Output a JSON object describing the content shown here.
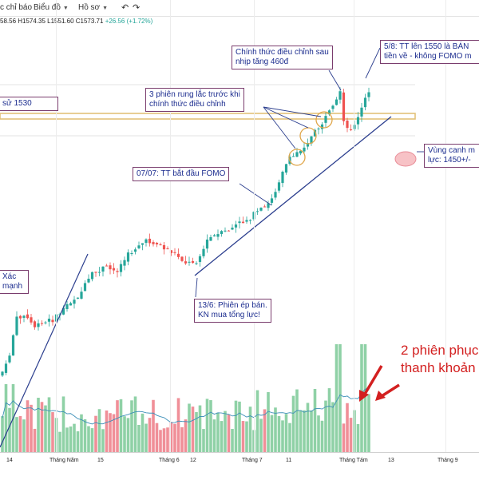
{
  "toolbar": {
    "items": [
      {
        "label": "c chỉ báo",
        "icon": "indicators-icon"
      },
      {
        "label": "Biểu đồ",
        "icon": "chevron-down-icon"
      },
      {
        "label": "Hồ sơ",
        "icon": "chevron-down-icon"
      }
    ]
  },
  "ohlc": {
    "text": "58.56 H1574.35 L1551.60 C1573.71",
    "change": "+26.56 (+1.72%)"
  },
  "annotations": {
    "resistance": "sử 1530",
    "shake": [
      "3 phiên rung lắc trước khi",
      "chính thức điều chỉnh"
    ],
    "correction": [
      "Chính thức điều chỉnh sau",
      "nhịp tăng 460đ"
    ],
    "aug5": [
      "5/8: TT lên 1550 là BÁN",
      "tiền về - không FOMO m"
    ],
    "fomo": "07/07: TT bắt đầu FOMO",
    "jun13": [
      "13/6: Phiên ép bán.",
      "KN mua tổng lực!"
    ],
    "watch_zone": [
      "Vùng canh m",
      "lực: 1450+/-"
    ],
    "left_note": [
      "Xác",
      "mạnh"
    ],
    "recovery": [
      "2 phiên phục",
      "thanh khoản"
    ]
  },
  "xaxis": [
    "14",
    "Tháng Năm",
    "15",
    "Tháng 6",
    "12",
    "Tháng 7",
    "11",
    "Tháng Tám",
    "13",
    "Tháng 9"
  ],
  "colors": {
    "up": "#26a69a",
    "down": "#ef5350",
    "vol_up": "#8fd1a6",
    "vol_down": "#f08f98",
    "annotation_border": "#7a3d6e",
    "annotation_text": "#1c2d8f",
    "trendline": "#2b3e8e",
    "resistance_band": "#e3c27a",
    "red_note": "#d32020"
  }
}
